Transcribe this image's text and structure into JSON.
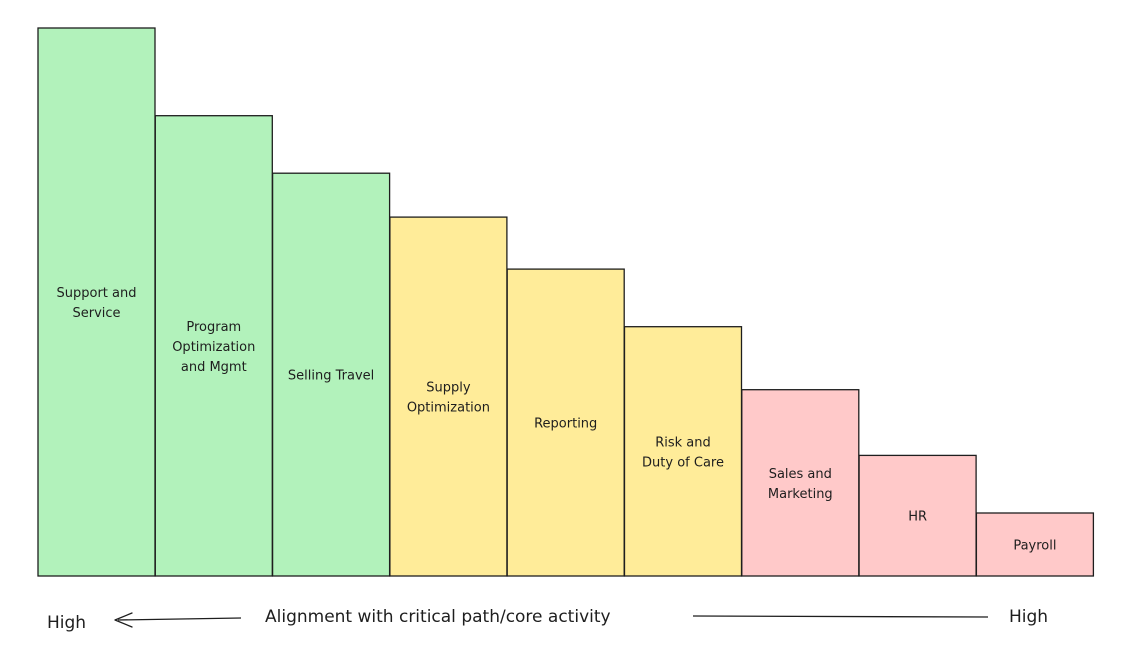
{
  "chart_data": {
    "type": "bar",
    "categories": [
      "Support and Service",
      "Program Optimization and Mgmt",
      "Selling Travel",
      "Supply Optimization",
      "Reporting",
      "Risk and Duty of Care",
      "Sales and Marketing",
      "HR",
      "Payroll"
    ],
    "label_lines": [
      [
        "Support and",
        "Service"
      ],
      [
        "Program",
        "Optimization",
        "and Mgmt"
      ],
      [
        "Selling Travel"
      ],
      [
        "Supply",
        "Optimization"
      ],
      [
        "Reporting"
      ],
      [
        "Risk and",
        "Duty of Care"
      ],
      [
        "Sales and",
        "Marketing"
      ],
      [
        "HR"
      ],
      [
        "Payroll"
      ]
    ],
    "values": [
      100,
      84,
      73.5,
      65.5,
      56,
      45.5,
      34,
      22,
      11.5
    ],
    "colors": [
      "#b2f2bb",
      "#b2f2bb",
      "#b2f2bb",
      "#ffec99",
      "#ffec99",
      "#ffec99",
      "#ffc9c9",
      "#ffc9c9",
      "#ffc9c9"
    ],
    "bar_stroke": "#1e1e1e",
    "ylim": [
      0,
      100
    ],
    "grid": false,
    "axis": {
      "left_label": "High",
      "title": "Alignment with critical path/core activity",
      "right_label": "High"
    }
  }
}
